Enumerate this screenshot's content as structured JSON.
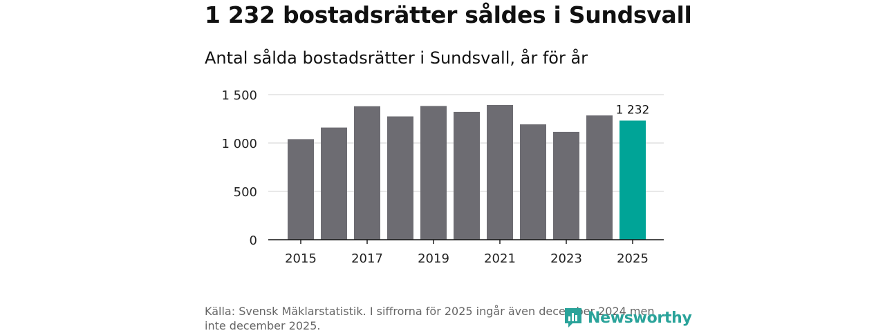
{
  "title": "1 232 bostadsrätter såldes i Sundsvall",
  "subtitle": "Antal sålda bostadsrätter i Sundsvall, år för år",
  "source": "Källa: Svensk Mäklarstatistik. I siffrorna för 2025 ingår även december 2024 men inte december 2025.",
  "logo": {
    "text": "Newsworthy",
    "icon": "newsworthy-logo-icon",
    "color": "#2aa39a"
  },
  "chart_data": {
    "type": "bar",
    "title": "Antal sålda bostadsrätter i Sundsvall, år för år",
    "xlabel": "",
    "ylabel": "",
    "categories": [
      "2015",
      "2016",
      "2017",
      "2018",
      "2019",
      "2020",
      "2021",
      "2022",
      "2023",
      "2024",
      "2025"
    ],
    "values": [
      1040,
      1160,
      1380,
      1275,
      1383,
      1322,
      1393,
      1193,
      1115,
      1285,
      1232
    ],
    "x_tick_labels": [
      "2015",
      "2017",
      "2019",
      "2021",
      "2023",
      "2025"
    ],
    "y_ticks": [
      0,
      500,
      1000,
      1500
    ],
    "y_tick_labels": [
      "0",
      "500",
      "1 000",
      "1 500"
    ],
    "ylim": [
      0,
      1500
    ],
    "grid": true,
    "bar_color": "#6d6c72",
    "highlight_color": "#00a497",
    "highlight_index": 10,
    "data_labels": [
      {
        "index": 10,
        "text": "1 232"
      }
    ]
  }
}
